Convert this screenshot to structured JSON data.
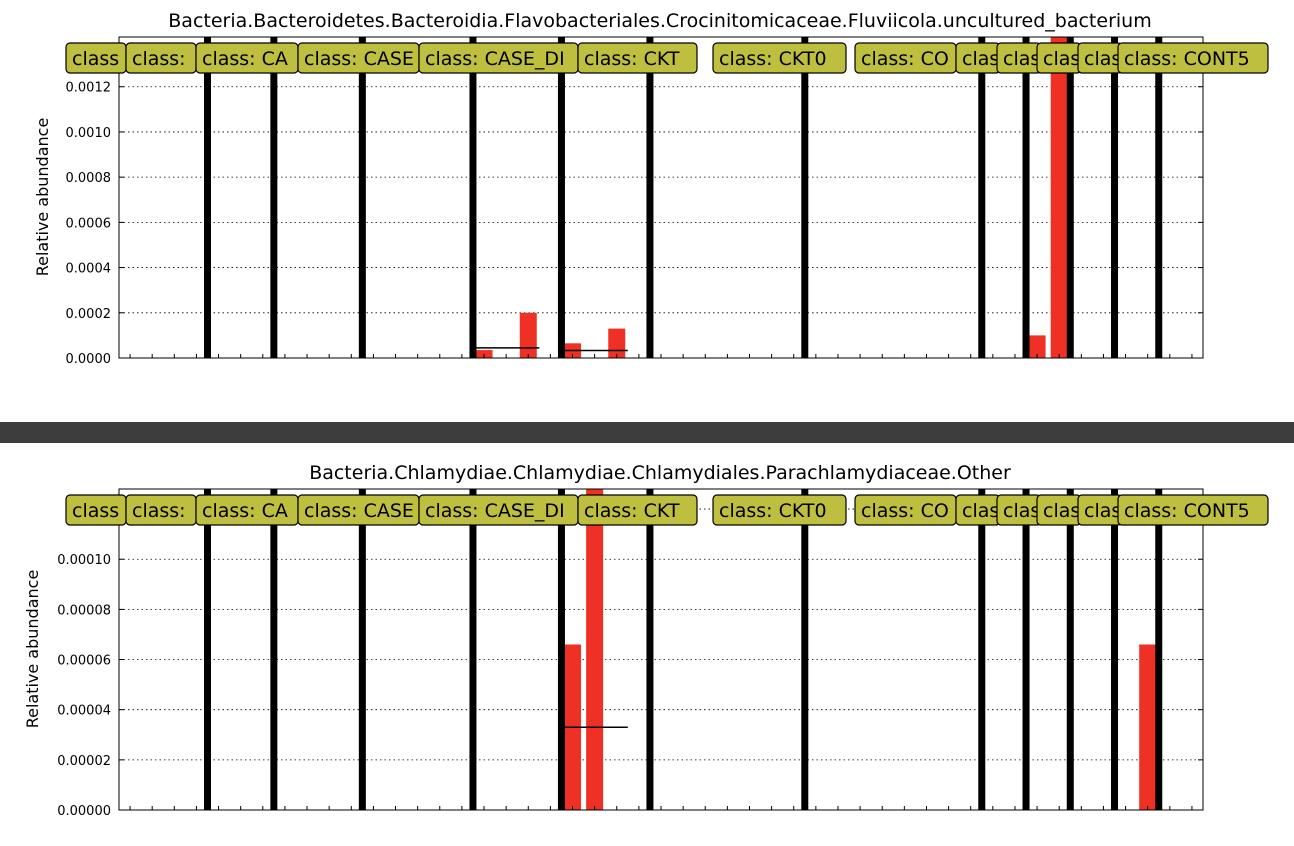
{
  "colors": {
    "bar": "#ee3124",
    "divider": "#3d3d3d",
    "label_box": "#bfbf3f",
    "separator": "#000000"
  },
  "chart_data": [
    {
      "type": "bar",
      "title": "Bacteria.Bacteroidetes.Bacteroidia.Flavobacteriales.Crocinitomicaceae.Fluviicola.uncultured_bacterium",
      "ylabel": "Relative abundance",
      "ylim": [
        0,
        0.00142
      ],
      "yticks": [
        0.0,
        0.0002,
        0.0004,
        0.0006,
        0.0008,
        0.001,
        0.0012
      ],
      "ytick_labels": [
        "0.0000",
        "0.0002",
        "0.0004",
        "0.0006",
        "0.0008",
        "0.0010",
        "0.0012"
      ],
      "grid": true,
      "class_labels": [
        "class",
        "class:",
        "class: CA",
        "class: CASE",
        "class: CASE_DI",
        "class: CKT",
        "class: CKT0",
        "class: CO",
        "clas",
        "clas",
        "clas",
        "clas",
        "class: CONT5"
      ],
      "values": [
        0,
        0,
        0,
        0,
        0,
        0,
        0,
        0,
        0,
        0,
        0,
        0,
        0,
        0,
        0,
        0,
        3.5e-05,
        0,
        0.0002,
        0,
        6.5e-05,
        0,
        0.00013,
        0,
        0,
        0,
        0,
        0,
        0,
        0,
        0,
        0,
        0,
        0,
        0,
        0,
        0,
        0,
        0,
        0,
        0,
        0.0001,
        0.00142,
        0,
        0,
        0,
        0,
        0,
        0
      ],
      "means": [
        {
          "from": 16,
          "to": 19,
          "value": 4.5e-05
        },
        {
          "from": 20,
          "to": 23,
          "value": 3.3e-05
        }
      ]
    },
    {
      "type": "bar",
      "title": "Bacteria.Chlamydiae.Chlamydiae.Chlamydiales.Parachlamydiaceae.Other",
      "ylabel": "Relative abundance",
      "ylim": [
        0,
        0.000128
      ],
      "yticks": [
        0.0,
        2e-05,
        4e-05,
        6e-05,
        8e-05,
        0.0001,
        0.00012
      ],
      "ytick_labels": [
        "0.00000",
        "0.00002",
        "0.00004",
        "0.00006",
        "0.00008",
        "0.00010",
        "0."
      ],
      "grid": true,
      "class_labels": [
        "class",
        "class:",
        "class: CA",
        "class: CASE",
        "class: CASE_DI",
        "class: CKT",
        "class: CKT0",
        "class: CO",
        "clas",
        "clas",
        "clas",
        "clas",
        "class: CONT5"
      ],
      "values": [
        0,
        0,
        0,
        0,
        0,
        0,
        0,
        0,
        0,
        0,
        0,
        0,
        0,
        0,
        0,
        0,
        0,
        0,
        0,
        0,
        6.6e-05,
        0.000128,
        0,
        0,
        0,
        0,
        0,
        0,
        0,
        0,
        0,
        0,
        0,
        0,
        0,
        0,
        0,
        0,
        0,
        0,
        0,
        0,
        0,
        0,
        0,
        0,
        6.6e-05,
        0,
        0
      ],
      "means": [
        {
          "from": 20,
          "to": 23,
          "value": 3.3e-05
        }
      ]
    }
  ]
}
